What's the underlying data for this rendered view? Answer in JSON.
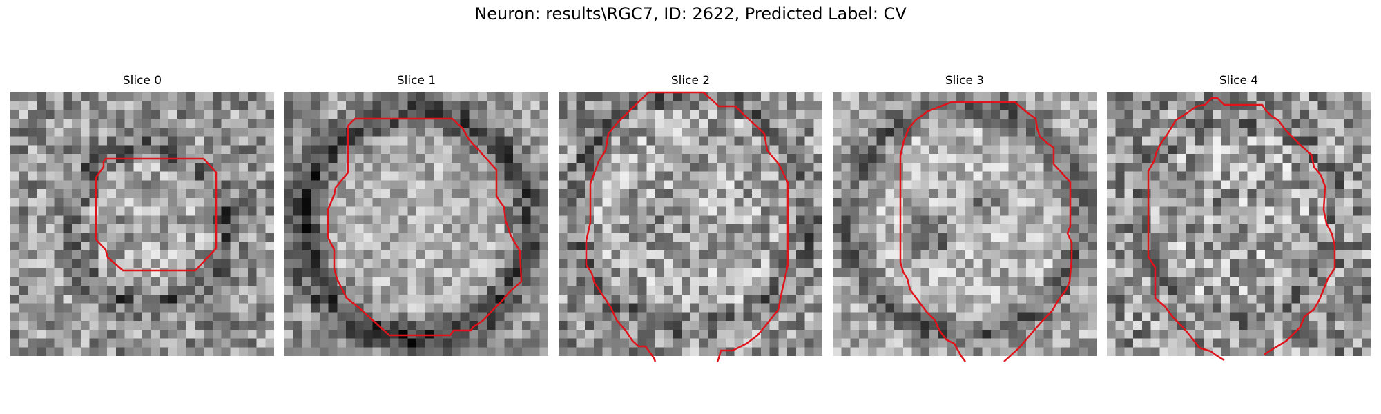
{
  "figure": {
    "title": "Neuron: results\\RGC7, ID: 2622, Predicted Label: CV"
  },
  "colors": {
    "contour": "#e0121a",
    "background": "#ffffff"
  },
  "slices": [
    {
      "title": "Slice 0"
    },
    {
      "title": "Slice 1"
    },
    {
      "title": "Slice 2"
    },
    {
      "title": "Slice 3"
    },
    {
      "title": "Slice 4"
    }
  ]
}
